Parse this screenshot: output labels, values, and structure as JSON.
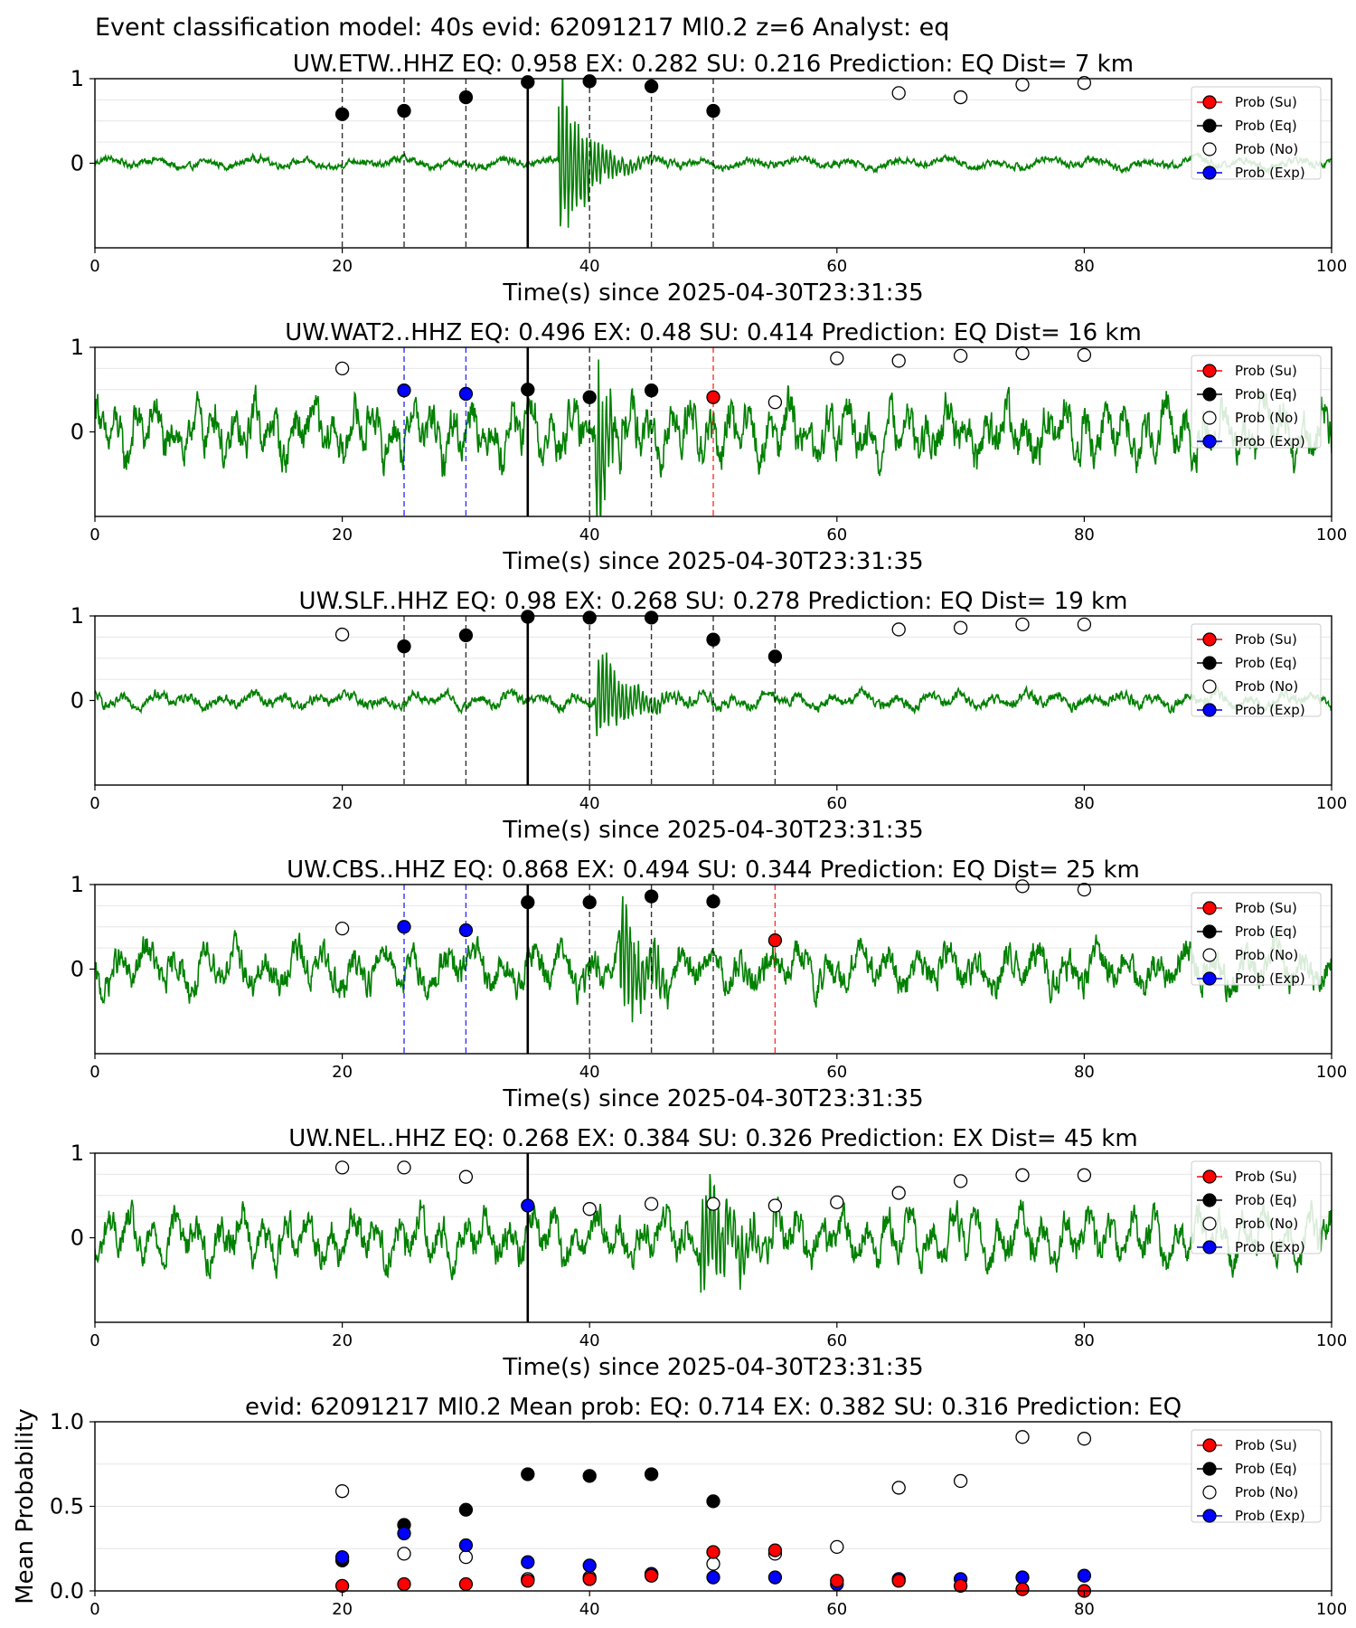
{
  "figure_title": "Event classification model: 40s evid: 62091217 Ml0.2 z=6 Analyst: eq",
  "colors": {
    "su": "#ff0000",
    "eq": "#000000",
    "no": "#ffffff",
    "exp": "#0000ff",
    "trace": "#008000"
  },
  "legend_labels": [
    "Prob (Su)",
    "Prob (Eq)",
    "Prob (No)",
    "Prob (Exp)"
  ],
  "chart_data": [
    {
      "type": "scatter",
      "title": "UW.ETW..HHZ   EQ: 0.958  EX: 0.282  SU: 0.216   Prediction: EQ    Dist= 7 km",
      "xlabel": "Time(s) since 2025-04-30T23:31:35",
      "ylabel": "",
      "xlim": [
        0,
        100
      ],
      "ylim": [
        -1,
        1
      ],
      "xticks": [
        "0",
        "20",
        "40",
        "60",
        "80",
        "100"
      ],
      "yticks": [
        "0",
        "1"
      ],
      "legend": "right",
      "origin_time": 35,
      "trace": {
        "noise": 0.07,
        "onset": 37.5,
        "burst_amp": 0.95,
        "decay": 2.2,
        "period": 4.0
      },
      "vlines": [
        {
          "x": 20,
          "color": "eq"
        },
        {
          "x": 25,
          "color": "eq"
        },
        {
          "x": 30,
          "color": "eq"
        },
        {
          "x": 40,
          "color": "eq"
        },
        {
          "x": 45,
          "color": "eq"
        },
        {
          "x": 50,
          "color": "eq"
        }
      ],
      "points": [
        {
          "x": 20,
          "y": 0.58,
          "cls": "eq"
        },
        {
          "x": 25,
          "y": 0.62,
          "cls": "eq"
        },
        {
          "x": 30,
          "y": 0.78,
          "cls": "eq"
        },
        {
          "x": 35,
          "y": 0.96,
          "cls": "eq"
        },
        {
          "x": 40,
          "y": 0.97,
          "cls": "eq"
        },
        {
          "x": 45,
          "y": 0.91,
          "cls": "eq"
        },
        {
          "x": 50,
          "y": 0.62,
          "cls": "eq"
        },
        {
          "x": 65,
          "y": 0.83,
          "cls": "no"
        },
        {
          "x": 70,
          "y": 0.78,
          "cls": "no"
        },
        {
          "x": 75,
          "y": 0.93,
          "cls": "no"
        },
        {
          "x": 80,
          "y": 0.95,
          "cls": "no"
        }
      ]
    },
    {
      "type": "scatter",
      "title": "UW.WAT2..HHZ   EQ: 0.496  EX: 0.48  SU: 0.414   Prediction: EQ    Dist= 16 km",
      "xlabel": "Time(s) since 2025-04-30T23:31:35",
      "ylabel": "",
      "xlim": [
        0,
        100
      ],
      "ylim": [
        -1,
        1
      ],
      "xticks": [
        "0",
        "20",
        "40",
        "60",
        "80",
        "100"
      ],
      "yticks": [
        "0",
        "1"
      ],
      "legend": "right",
      "origin_time": 35,
      "trace": {
        "noise": 0.38,
        "onset": 40.5,
        "burst_amp": 0.9,
        "decay": 1.2,
        "period": 1.6
      },
      "vlines": [
        {
          "x": 25,
          "color": "exp"
        },
        {
          "x": 30,
          "color": "exp"
        },
        {
          "x": 40,
          "color": "eq"
        },
        {
          "x": 45,
          "color": "eq"
        },
        {
          "x": 50,
          "color": "su"
        }
      ],
      "points": [
        {
          "x": 20,
          "y": 0.75,
          "cls": "no"
        },
        {
          "x": 25,
          "y": 0.49,
          "cls": "exp"
        },
        {
          "x": 30,
          "y": 0.45,
          "cls": "exp"
        },
        {
          "x": 35,
          "y": 0.5,
          "cls": "eq"
        },
        {
          "x": 40,
          "y": 0.41,
          "cls": "eq"
        },
        {
          "x": 45,
          "y": 0.49,
          "cls": "eq"
        },
        {
          "x": 50,
          "y": 0.41,
          "cls": "su"
        },
        {
          "x": 55,
          "y": 0.35,
          "cls": "no"
        },
        {
          "x": 60,
          "y": 0.87,
          "cls": "no"
        },
        {
          "x": 65,
          "y": 0.84,
          "cls": "no"
        },
        {
          "x": 70,
          "y": 0.9,
          "cls": "no"
        },
        {
          "x": 75,
          "y": 0.93,
          "cls": "no"
        },
        {
          "x": 80,
          "y": 0.91,
          "cls": "no"
        }
      ]
    },
    {
      "type": "scatter",
      "title": "UW.SLF..HHZ   EQ: 0.98  EX: 0.268  SU: 0.278   Prediction: EQ    Dist= 19 km",
      "xlabel": "Time(s) since 2025-04-30T23:31:35",
      "ylabel": "",
      "xlim": [
        0,
        100
      ],
      "ylim": [
        -1,
        1
      ],
      "xticks": [
        "0",
        "20",
        "40",
        "60",
        "80",
        "100"
      ],
      "yticks": [
        "0",
        "1"
      ],
      "legend": "right",
      "origin_time": 35,
      "trace": {
        "noise": 0.1,
        "onset": 40.5,
        "burst_amp": 0.55,
        "decay": 2.5,
        "period": 2.6
      },
      "vlines": [
        {
          "x": 25,
          "color": "eq"
        },
        {
          "x": 30,
          "color": "eq"
        },
        {
          "x": 40,
          "color": "eq"
        },
        {
          "x": 45,
          "color": "eq"
        },
        {
          "x": 50,
          "color": "eq"
        },
        {
          "x": 55,
          "color": "eq"
        }
      ],
      "points": [
        {
          "x": 20,
          "y": 0.78,
          "cls": "no"
        },
        {
          "x": 25,
          "y": 0.64,
          "cls": "eq"
        },
        {
          "x": 30,
          "y": 0.77,
          "cls": "eq"
        },
        {
          "x": 35,
          "y": 0.99,
          "cls": "eq"
        },
        {
          "x": 40,
          "y": 0.98,
          "cls": "eq"
        },
        {
          "x": 45,
          "y": 0.98,
          "cls": "eq"
        },
        {
          "x": 50,
          "y": 0.72,
          "cls": "eq"
        },
        {
          "x": 55,
          "y": 0.52,
          "cls": "eq"
        },
        {
          "x": 65,
          "y": 0.84,
          "cls": "no"
        },
        {
          "x": 70,
          "y": 0.86,
          "cls": "no"
        },
        {
          "x": 75,
          "y": 0.9,
          "cls": "no"
        },
        {
          "x": 80,
          "y": 0.9,
          "cls": "no"
        }
      ]
    },
    {
      "type": "scatter",
      "title": "UW.CBS..HHZ   EQ: 0.868  EX: 0.494  SU: 0.344   Prediction: EQ    Dist= 25 km",
      "xlabel": "Time(s) since 2025-04-30T23:31:35",
      "ylabel": "",
      "xlim": [
        0,
        100
      ],
      "ylim": [
        -1,
        1
      ],
      "xticks": [
        "0",
        "20",
        "40",
        "60",
        "80",
        "100"
      ],
      "yticks": [
        "0",
        "1"
      ],
      "legend": "right",
      "origin_time": 35,
      "trace": {
        "noise": 0.3,
        "onset": 42.5,
        "burst_amp": 0.7,
        "decay": 2.0,
        "period": 2.4
      },
      "vlines": [
        {
          "x": 25,
          "color": "exp"
        },
        {
          "x": 30,
          "color": "exp"
        },
        {
          "x": 40,
          "color": "eq"
        },
        {
          "x": 45,
          "color": "eq"
        },
        {
          "x": 50,
          "color": "eq"
        },
        {
          "x": 55,
          "color": "su"
        }
      ],
      "points": [
        {
          "x": 20,
          "y": 0.48,
          "cls": "no"
        },
        {
          "x": 25,
          "y": 0.5,
          "cls": "exp"
        },
        {
          "x": 30,
          "y": 0.46,
          "cls": "exp"
        },
        {
          "x": 35,
          "y": 0.79,
          "cls": "eq"
        },
        {
          "x": 40,
          "y": 0.79,
          "cls": "eq"
        },
        {
          "x": 45,
          "y": 0.86,
          "cls": "eq"
        },
        {
          "x": 50,
          "y": 0.8,
          "cls": "eq"
        },
        {
          "x": 55,
          "y": 0.34,
          "cls": "su"
        },
        {
          "x": 75,
          "y": 0.98,
          "cls": "no"
        },
        {
          "x": 80,
          "y": 0.94,
          "cls": "no"
        }
      ]
    },
    {
      "type": "scatter",
      "title": "UW.NEL..HHZ   EQ: 0.268  EX: 0.384  SU: 0.326   Prediction: EX    Dist= 45 km",
      "xlabel": "Time(s) since 2025-04-30T23:31:35",
      "ylabel": "",
      "xlim": [
        0,
        100
      ],
      "ylim": [
        -1,
        1
      ],
      "xticks": [
        "0",
        "20",
        "40",
        "60",
        "80",
        "100"
      ],
      "yticks": [
        "0",
        "1"
      ],
      "legend": "right",
      "origin_time": 35,
      "trace": {
        "noise": 0.32,
        "onset": 49.0,
        "burst_amp": 0.55,
        "decay": 3.0,
        "period": 1.8
      },
      "vlines": [],
      "points": [
        {
          "x": 20,
          "y": 0.83,
          "cls": "no"
        },
        {
          "x": 25,
          "y": 0.83,
          "cls": "no"
        },
        {
          "x": 30,
          "y": 0.72,
          "cls": "no"
        },
        {
          "x": 35,
          "y": 0.38,
          "cls": "exp"
        },
        {
          "x": 40,
          "y": 0.34,
          "cls": "no"
        },
        {
          "x": 45,
          "y": 0.4,
          "cls": "no"
        },
        {
          "x": 50,
          "y": 0.4,
          "cls": "no"
        },
        {
          "x": 55,
          "y": 0.38,
          "cls": "no"
        },
        {
          "x": 60,
          "y": 0.42,
          "cls": "no"
        },
        {
          "x": 65,
          "y": 0.53,
          "cls": "no"
        },
        {
          "x": 70,
          "y": 0.67,
          "cls": "no"
        },
        {
          "x": 75,
          "y": 0.74,
          "cls": "no"
        },
        {
          "x": 80,
          "y": 0.74,
          "cls": "no"
        }
      ]
    },
    {
      "type": "scatter",
      "title": "evid: 62091217  Ml0.2   Mean prob:   EQ: 0.714  EX: 0.382  SU: 0.316   Prediction: EQ",
      "xlabel": "",
      "ylabel": "Mean Probability",
      "xlim": [
        0,
        100
      ],
      "ylim": [
        0,
        1
      ],
      "xticks": [
        "0",
        "20",
        "40",
        "60",
        "80",
        "100"
      ],
      "yticks": [
        "0.0",
        "0.5",
        "1.0"
      ],
      "legend": "right",
      "series": [
        {
          "cls": "no",
          "x": [
            20,
            25,
            30,
            35,
            40,
            45,
            50,
            55,
            60,
            65,
            70,
            75,
            80
          ],
          "values": [
            0.59,
            0.22,
            0.2,
            0.07,
            0.08,
            0.1,
            0.16,
            0.22,
            0.26,
            0.61,
            0.65,
            0.91,
            0.9
          ]
        },
        {
          "cls": "eq",
          "x": [
            20,
            25,
            30,
            35,
            40,
            45,
            50
          ],
          "values": [
            0.18,
            0.39,
            0.48,
            0.69,
            0.68,
            0.69,
            0.53
          ]
        },
        {
          "cls": "exp",
          "x": [
            20,
            25,
            30,
            35,
            40,
            45,
            50,
            55,
            60,
            65,
            70,
            75,
            80
          ],
          "values": [
            0.2,
            0.34,
            0.27,
            0.17,
            0.15,
            0.1,
            0.08,
            0.08,
            0.04,
            0.07,
            0.07,
            0.08,
            0.09
          ]
        },
        {
          "cls": "su",
          "x": [
            20,
            25,
            30,
            35,
            40,
            45,
            50,
            55,
            60,
            65,
            70,
            75,
            80
          ],
          "values": [
            0.03,
            0.04,
            0.04,
            0.06,
            0.07,
            0.09,
            0.23,
            0.24,
            0.06,
            0.06,
            0.03,
            0.01,
            0.0
          ]
        }
      ]
    }
  ]
}
